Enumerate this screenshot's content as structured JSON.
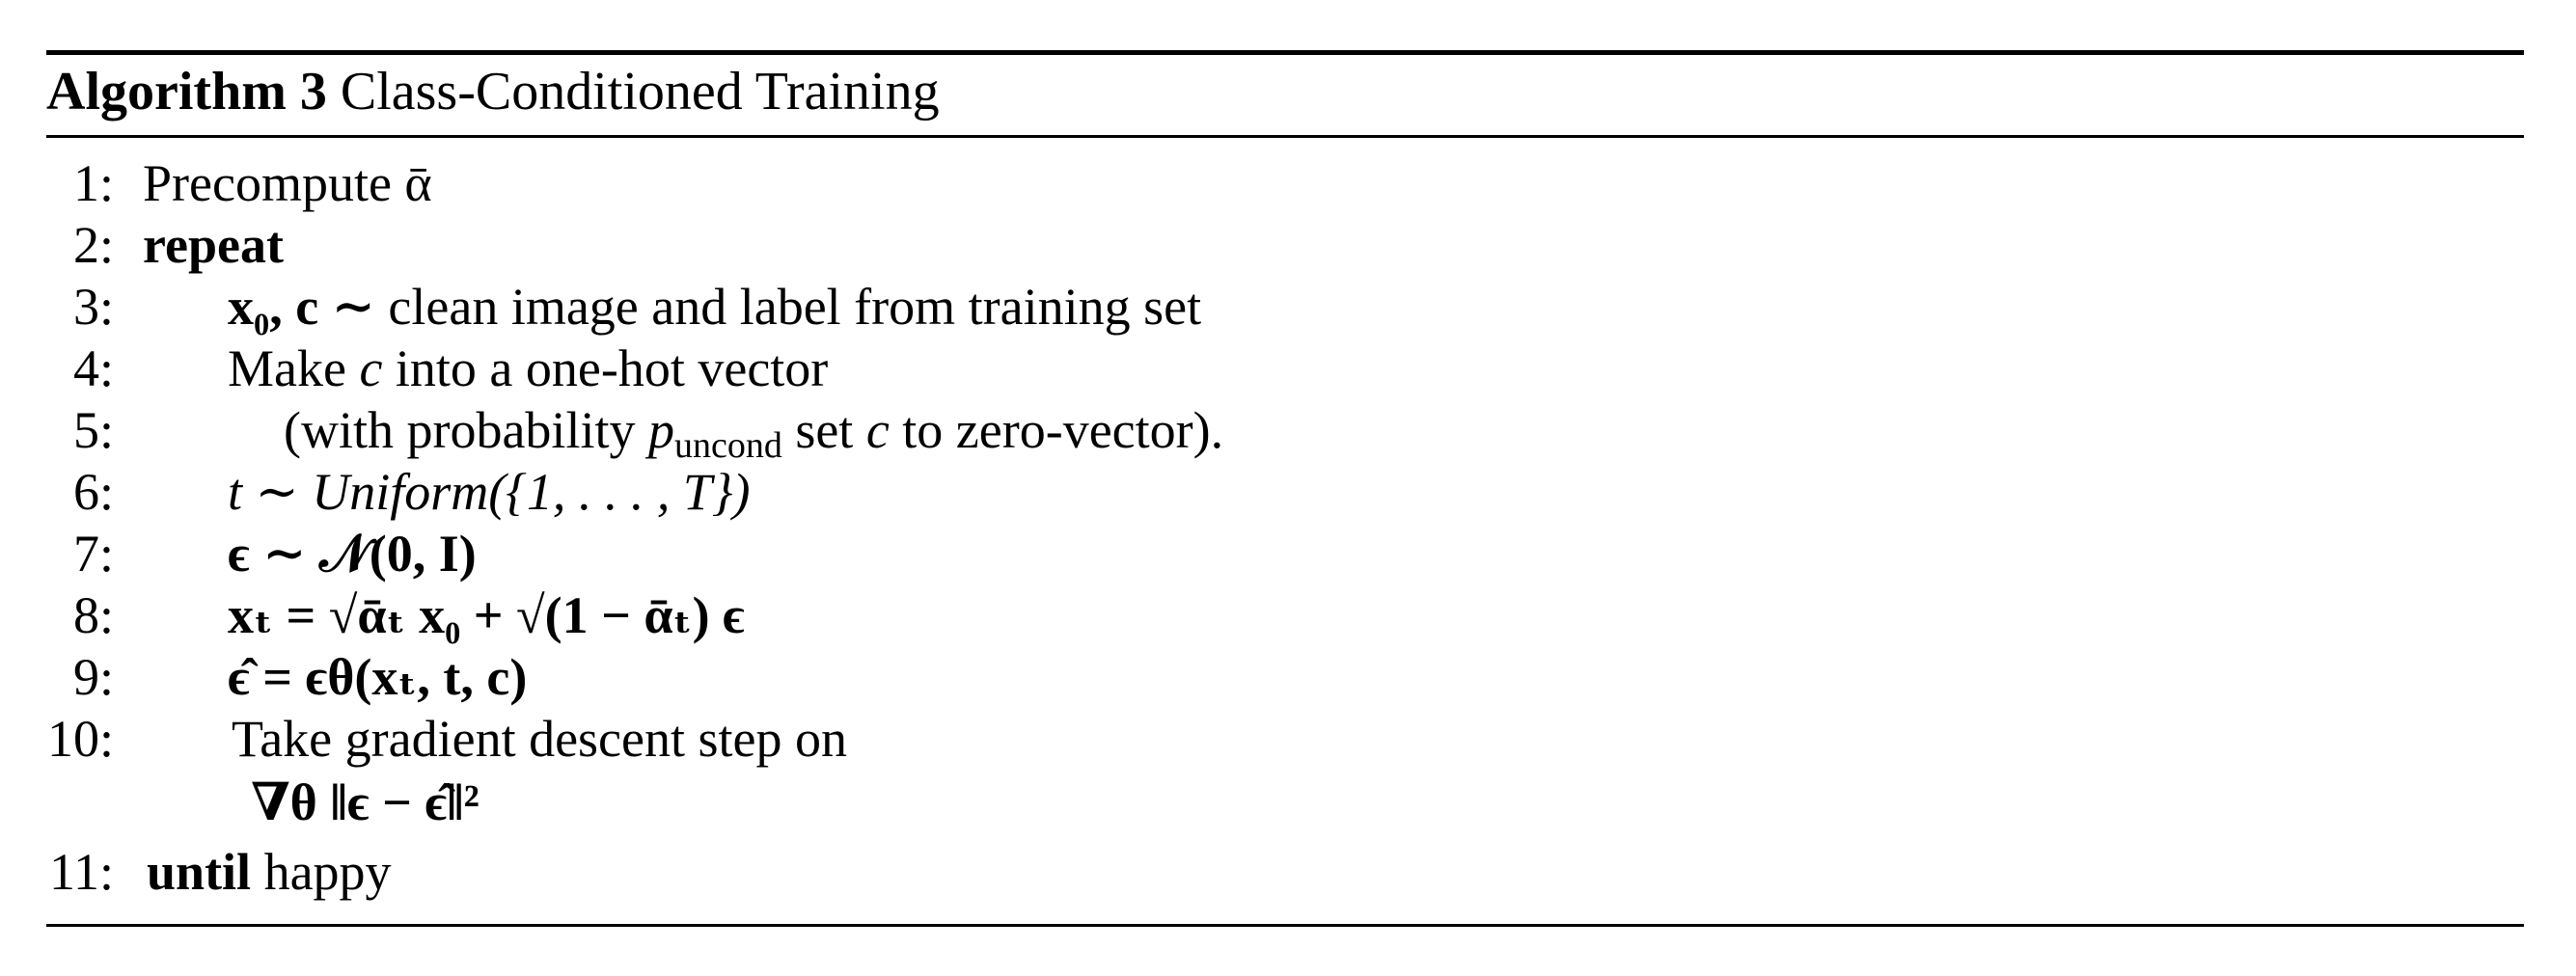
{
  "algorithm": {
    "label": "Algorithm 3",
    "title": "Class-Conditioned Training"
  },
  "steps": [
    {
      "num": "1:",
      "text": "Precompute ᾱ"
    },
    {
      "num": "2:",
      "keyword": "repeat"
    },
    {
      "num": "3:",
      "math": "x₀, c ∼",
      "text": "clean image and label from training set"
    },
    {
      "num": "4:",
      "prefix": "Make",
      "var": "c",
      "text": "into a one-hot vector"
    },
    {
      "num": "5:",
      "prefix": "(with probability",
      "var": "p",
      "sub": "uncond",
      "mid": "set",
      "var2": "c",
      "text": "to zero-vector)."
    },
    {
      "num": "6:",
      "math": "t ∼ Uniform({1, . . . , T})"
    },
    {
      "num": "7:",
      "math": "ϵ ∼ 𝒩(0, I)"
    },
    {
      "num": "8:",
      "math": "xₜ = √ᾱₜ x₀ + √(1 − ᾱₜ) ϵ"
    },
    {
      "num": "9:",
      "math": "ϵ̂ = ϵθ(xₜ, t, c)"
    },
    {
      "num": "10:",
      "text": "Take gradient descent step on",
      "cont": "∇θ ‖ϵ − ϵ̂‖²"
    },
    {
      "num": "11:",
      "keyword": "until",
      "text": "happy"
    }
  ]
}
